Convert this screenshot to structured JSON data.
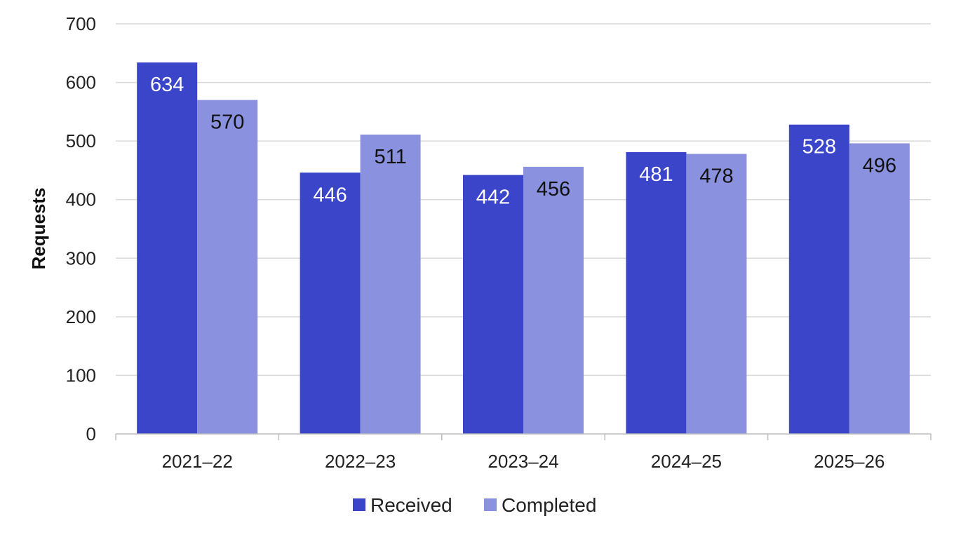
{
  "chart_data": {
    "type": "bar",
    "title": "",
    "xlabel": "",
    "ylabel": "Requests",
    "ylim": [
      0,
      700
    ],
    "yticks": [
      0,
      100,
      200,
      300,
      400,
      500,
      600,
      700
    ],
    "grid": true,
    "legend_position": "bottom",
    "categories": [
      "2021–22",
      "2022–23",
      "2023–24",
      "2024–25",
      "2025–26"
    ],
    "series": [
      {
        "name": "Received",
        "color": "#3a45c9",
        "label_color": "#ffffff",
        "values": [
          634,
          446,
          442,
          481,
          528
        ]
      },
      {
        "name": "Completed",
        "color": "#8a92e0",
        "label_color": "#111111",
        "values": [
          570,
          511,
          456,
          478,
          496
        ]
      }
    ]
  }
}
